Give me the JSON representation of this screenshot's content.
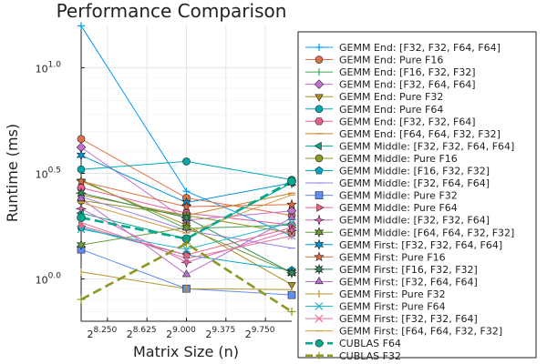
{
  "chart_data": {
    "type": "line",
    "title": "Performance Comparison",
    "xlabel": "Matrix Size (n)",
    "ylabel": "Runtime (ms)",
    "x_scale": "log2",
    "y_scale": "log10",
    "x": [
      256,
      512,
      1024
    ],
    "xlim": [
      256,
      1024
    ],
    "ylim_exponent": [
      -0.2,
      1.2
    ],
    "x_ticks": [
      {
        "base": "2",
        "exp": "8.250",
        "value": 8.25
      },
      {
        "base": "2",
        "exp": "8.625",
        "value": 8.625
      },
      {
        "base": "2",
        "exp": "9.000",
        "value": 9.0
      },
      {
        "base": "2",
        "exp": "9.375",
        "value": 9.375
      },
      {
        "base": "2",
        "exp": "9.750",
        "value": 9.75
      }
    ],
    "y_ticks": [
      {
        "base": "10",
        "exp": "0.0",
        "value": 0.0
      },
      {
        "base": "10",
        "exp": "0.5",
        "value": 0.5
      },
      {
        "base": "10",
        "exp": "1.0",
        "value": 1.0
      }
    ],
    "grid": true,
    "legend_position": "outside-right",
    "series": [
      {
        "name": "GEMM End: [F32, F32, F64, F64]",
        "color": "#009AFA",
        "marker": "plus",
        "dash": false,
        "values": [
          15.8,
          2.6,
          1.6
        ]
      },
      {
        "name": "GEMM End: Pure F16",
        "color": "#E36F47",
        "marker": "circle",
        "dash": false,
        "values": [
          4.6,
          2.42,
          2.0
        ]
      },
      {
        "name": "GEMM End: [F16, F32, F32]",
        "color": "#3EA44E",
        "marker": "vline",
        "dash": false,
        "values": [
          2.95,
          1.73,
          1.8
        ]
      },
      {
        "name": "GEMM End: [F32, F64, F64]",
        "color": "#C371D2",
        "marker": "diamond",
        "dash": false,
        "values": [
          4.2,
          1.9,
          2.1
        ]
      },
      {
        "name": "GEMM End: Pure F32",
        "color": "#AC8E18",
        "marker": "dtriangle",
        "dash": false,
        "values": [
          2.9,
          1.8,
          0.94
        ]
      },
      {
        "name": "GEMM End: Pure F64",
        "color": "#00A9AD",
        "marker": "circle",
        "dash": false,
        "values": [
          3.3,
          3.6,
          2.95
        ]
      },
      {
        "name": "GEMM End: [F32, F32, F64]",
        "color": "#ED5E93",
        "marker": "hexagon",
        "dash": false,
        "values": [
          2.7,
          2.05,
          1.8
        ]
      },
      {
        "name": "GEMM End: [F64, F64, F32, F32]",
        "color": "#C68225",
        "marker": "hline",
        "dash": false,
        "values": [
          2.5,
          2.0,
          2.55
        ]
      },
      {
        "name": "GEMM Middle: [F32, F32, F64, F64]",
        "color": "#00A98D",
        "marker": "ltriangle",
        "dash": false,
        "values": [
          2.05,
          1.55,
          2.85
        ]
      },
      {
        "name": "GEMM Middle: Pure F16",
        "color": "#8E971E",
        "marker": "circle",
        "dash": false,
        "values": [
          2.35,
          2.0,
          1.65
        ]
      },
      {
        "name": "GEMM Middle: [F16, F32, F32]",
        "color": "#00A8CB",
        "marker": "pentagon",
        "dash": false,
        "values": [
          1.75,
          1.3,
          1.1
        ]
      },
      {
        "name": "GEMM Middle: [F32, F64, F64]",
        "color": "#9B7FE9",
        "marker": "hline",
        "dash": false,
        "values": [
          2.45,
          1.7,
          1.4
        ]
      },
      {
        "name": "GEMM Middle: Pure F32",
        "color": "#618DF6",
        "marker": "rect",
        "dash": false,
        "values": [
          1.38,
          0.9,
          0.84
        ]
      },
      {
        "name": "GEMM Middle: Pure F64",
        "color": "#F06184",
        "marker": "rtriangle",
        "dash": false,
        "values": [
          1.78,
          1.3,
          1.75
        ]
      },
      {
        "name": "GEMM Middle: [F32, F32, F64]",
        "color": "#DD64B5",
        "marker": "star4",
        "dash": false,
        "values": [
          2.15,
          1.2,
          1.7
        ]
      },
      {
        "name": "GEMM Middle: [F64, F64, F32, F32]",
        "color": "#6A9B35",
        "marker": "star6",
        "dash": false,
        "values": [
          1.45,
          1.75,
          1.07
        ]
      },
      {
        "name": "GEMM First: [F32, F32, F64, F64]",
        "color": "#0096D6",
        "marker": "star6",
        "dash": false,
        "values": [
          3.85,
          2.3,
          2.85
        ]
      },
      {
        "name": "GEMM First: Pure F16",
        "color": "#E06A3B",
        "marker": "star5",
        "dash": false,
        "values": [
          2.9,
          2.2,
          2.25
        ]
      },
      {
        "name": "GEMM First: [F16, F32, F32]",
        "color": "#2E8B57",
        "marker": "star8",
        "dash": false,
        "values": [
          2.55,
          1.95,
          1.07
        ]
      },
      {
        "name": "GEMM First: [F32, F64, F64]",
        "color": "#B86FCF",
        "marker": "utriangle",
        "dash": false,
        "values": [
          2.4,
          1.05,
          1.95
        ]
      },
      {
        "name": "GEMM First: Pure F32",
        "color": "#B8962E",
        "marker": "vline",
        "dash": false,
        "values": [
          1.08,
          0.9,
          0.89
        ]
      },
      {
        "name": "GEMM First: Pure F64",
        "color": "#22B7C9",
        "marker": "xcross",
        "dash": false,
        "values": [
          1.72,
          1.38,
          1.85
        ]
      },
      {
        "name": "GEMM First: [F32, F32, F64]",
        "color": "#E8739A",
        "marker": "xcross",
        "dash": false,
        "values": [
          1.85,
          1.25,
          1.6
        ]
      },
      {
        "name": "GEMM First: [F64, F64, F32, F32]",
        "color": "#D4963C",
        "marker": "hline",
        "dash": false,
        "values": [
          2.3,
          1.65,
          2.5
        ]
      },
      {
        "name": "CUBLAS F64",
        "color": "#00A98D",
        "marker": "circle",
        "dash": true,
        "values": [
          1.95,
          1.55,
          2.9
        ]
      },
      {
        "name": "CUBLAS F32",
        "color": "#8E971E",
        "marker": "plus",
        "dash": true,
        "values": [
          0.8,
          1.47,
          0.7
        ]
      }
    ]
  }
}
